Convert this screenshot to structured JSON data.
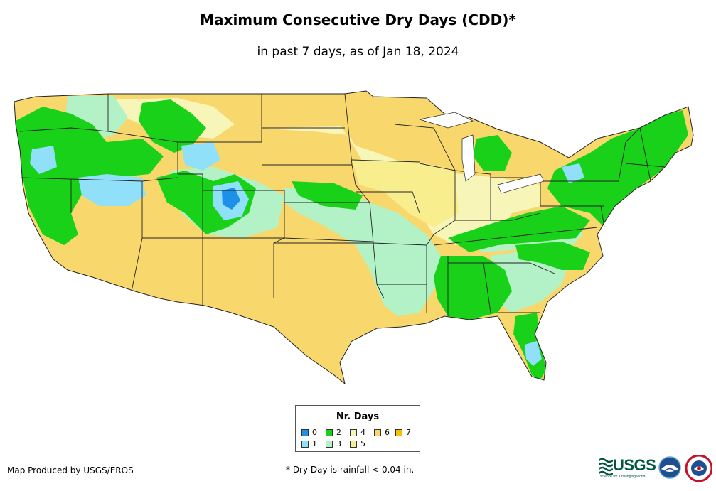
{
  "title": "Maximum Consecutive Dry Days (CDD)*",
  "subtitle": "in past 7 days, as of Jan 18, 2024",
  "legend": {
    "title": "Nr. Days",
    "items": [
      {
        "label": "0",
        "color": "#1e90e8"
      },
      {
        "label": "1",
        "color": "#8fe0f8"
      },
      {
        "label": "2",
        "color": "#19d119"
      },
      {
        "label": "3",
        "color": "#b3f2c6"
      },
      {
        "label": "4",
        "color": "#f7f6b8"
      },
      {
        "label": "5",
        "color": "#f9ee8e"
      },
      {
        "label": "6",
        "color": "#f8d86c"
      },
      {
        "label": "7",
        "color": "#f3c200"
      }
    ]
  },
  "footer": {
    "producer": "Map Produced by USGS/EROS",
    "footnote": "* Dry Day is rainfall < 0.04 in."
  },
  "logos": {
    "usgs": "USGS",
    "usgs_tagline": "science for a changing world",
    "noaa_icon": "noaa-logo-icon",
    "nws_icon": "nws-logo-icon"
  },
  "map": {
    "base_color": "#f8d86c",
    "state_border_color": "#222222"
  }
}
